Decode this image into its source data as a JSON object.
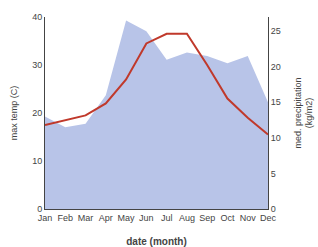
{
  "chart_data": {
    "type": "line",
    "xlabel": "date (month)",
    "ylabel": "max temp (C)",
    "y2label": "med. precipitation\n(kg/m2)",
    "categories": [
      "Jan",
      "Feb",
      "Mar",
      "Apr",
      "May",
      "Jun",
      "Jul",
      "Aug",
      "Sep",
      "Oct",
      "Nov",
      "Dec"
    ],
    "series": [
      {
        "type": "area",
        "axis": "y2",
        "color": "#b8c4e8",
        "values": [
          13.0,
          11.5,
          12.0,
          16.0,
          26.5,
          25.0,
          21.0,
          22.0,
          21.5,
          20.5,
          21.5,
          15.0
        ]
      },
      {
        "type": "line",
        "color": "#c0392b",
        "values": [
          17.5,
          18.5,
          19.5,
          22.0,
          27.0,
          34.5,
          36.5,
          36.5,
          30.0,
          23.0,
          19.0,
          15.5
        ]
      }
    ],
    "ylim": [
      0,
      40
    ],
    "yticks": [
      0,
      10,
      20,
      30,
      40
    ],
    "y2lim": [
      0,
      27
    ],
    "y2ticks": [
      0,
      5,
      10,
      15,
      20,
      25
    ],
    "grid": false
  }
}
